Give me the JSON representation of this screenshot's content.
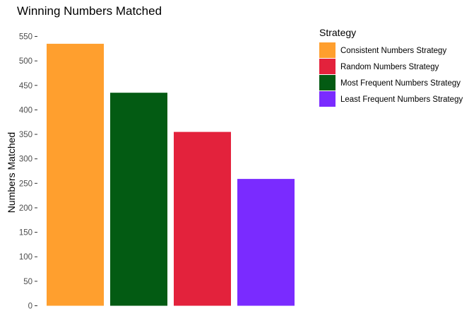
{
  "chart_data": {
    "type": "bar",
    "title": "Winning Numbers Matched",
    "xlabel": "",
    "ylabel": "Numbers Matched",
    "ylim": [
      0,
      555
    ],
    "yticks": [
      0,
      50,
      100,
      150,
      200,
      250,
      300,
      350,
      400,
      450,
      500,
      550
    ],
    "grid": false,
    "legend": {
      "title": "Strategy",
      "position": "right"
    },
    "categories": [
      "Consistent Numbers Strategy",
      "Most Frequent Numbers Strategy",
      "Random Numbers Strategy",
      "Least Frequent Numbers Strategy"
    ],
    "values": [
      535,
      435,
      355,
      259
    ],
    "colors": [
      "#FF9F2E",
      "#035B13",
      "#E3223C",
      "#7A2BFF"
    ],
    "legend_entries": [
      {
        "label": "Consistent Numbers Strategy",
        "color": "#FF9F2E"
      },
      {
        "label": "Random Numbers Strategy",
        "color": "#E3223C"
      },
      {
        "label": "Most Frequent Numbers Strategy",
        "color": "#035B13"
      },
      {
        "label": "Least Frequent Numbers Strategy",
        "color": "#7A2BFF"
      }
    ]
  }
}
